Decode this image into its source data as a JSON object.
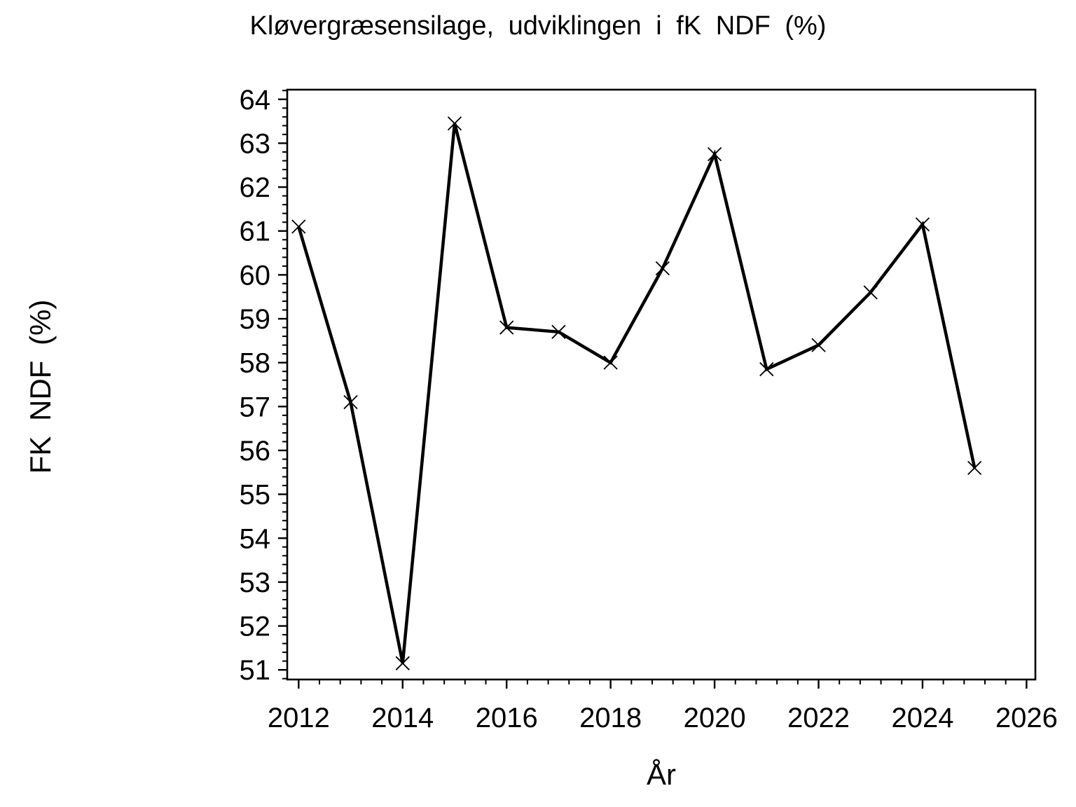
{
  "chart_data": {
    "type": "line",
    "title": "Kløvergræsensilage, udviklingen i fK NDF (%)",
    "xlabel": "År",
    "ylabel": "FK NDF (%)",
    "series_name": "fK NDF",
    "x": [
      2012,
      2013,
      2014,
      2015,
      2016,
      2017,
      2018,
      2019,
      2020,
      2021,
      2022,
      2023,
      2024,
      2025
    ],
    "values": [
      61.1,
      57.1,
      51.15,
      63.45,
      58.8,
      58.7,
      58.0,
      60.15,
      62.75,
      57.85,
      58.4,
      59.6,
      61.15,
      55.6
    ],
    "xlim": [
      2011.78,
      2026.17
    ],
    "ylim": [
      50.78,
      64.22
    ],
    "x_major_ticks": [
      2012,
      2014,
      2016,
      2018,
      2020,
      2022,
      2024,
      2026
    ],
    "x_minor_step": 0.4,
    "y_major_ticks": [
      51,
      52,
      53,
      54,
      55,
      56,
      57,
      58,
      59,
      60,
      61,
      62,
      63,
      64
    ],
    "y_minor_step": 0.2,
    "marker": "x",
    "line_color": "#000000",
    "axis_color": "#000000",
    "background": "#ffffff",
    "grid": false,
    "legend_position": "none"
  }
}
